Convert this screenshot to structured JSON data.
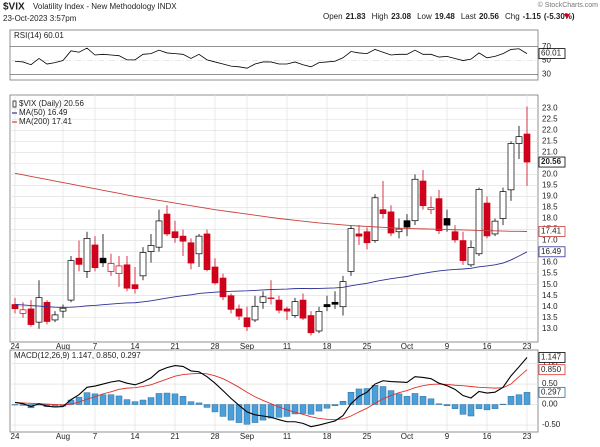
{
  "header": {
    "symbol": "$VIX",
    "name": "Volatility Index - New Methodology INDX",
    "datetime": "23-Oct-2023 3:57pm",
    "copyright": "© StockCharts.com",
    "quote": [
      {
        "label": "Open",
        "value": 21.83
      },
      {
        "label": "High",
        "value": 23.08
      },
      {
        "label": "Low",
        "value": 19.48
      },
      {
        "label": "Last",
        "value": 20.56
      },
      {
        "label": "Chg",
        "value": -1.15
      }
    ],
    "change_pct": {
      "value": -5.3,
      "label": "(-5.30%)"
    }
  },
  "chart_data": [
    {
      "type": "line",
      "title": "RSI(14) 60.01",
      "ylim": [
        22,
        94
      ],
      "yticks": [
        30,
        50,
        70
      ],
      "series": [
        {
          "name": "RSI(14)",
          "color": "#000000",
          "values": [
            49,
            48,
            44,
            53,
            45,
            47,
            50,
            64,
            62,
            68,
            58,
            59,
            58,
            57,
            51,
            51,
            59,
            60,
            65,
            61,
            60,
            59,
            53,
            59,
            51,
            48,
            45,
            42,
            41,
            39,
            45,
            48,
            48,
            45,
            45,
            48,
            44,
            41,
            47,
            48,
            49,
            54,
            63,
            61,
            60,
            66,
            62,
            58,
            59,
            59,
            65,
            59,
            59,
            55,
            56,
            53,
            50,
            52,
            61,
            54,
            56,
            60,
            66,
            67,
            60.01
          ]
        }
      ]
    },
    {
      "type": "candlestick",
      "title": "$VIX (Daily) 20.56",
      "ylim": [
        12.4,
        23.6
      ],
      "yticks": [
        {
          "value": 13,
          "label": "13.0"
        },
        {
          "value": 13.5,
          "label": "13.5"
        },
        {
          "value": 14,
          "label": "14.0"
        },
        {
          "value": 14.5,
          "label": "14.5"
        },
        {
          "value": 15,
          "label": "15.0"
        },
        {
          "value": 15.5,
          "label": "15.5"
        },
        {
          "value": 16,
          "label": "16.0"
        },
        {
          "value": 16.5,
          "label": "16.5"
        },
        {
          "value": 17,
          "label": "17.0"
        },
        {
          "value": 17.5,
          "label": "17.5"
        },
        {
          "value": 18,
          "label": "18.0"
        },
        {
          "value": 18.5,
          "label": "18.5"
        },
        {
          "value": 19,
          "label": "19.0"
        },
        {
          "value": 19.5,
          "label": "19.5"
        },
        {
          "value": 20,
          "label": "20.0"
        },
        {
          "value": 20.5,
          "label": "20.5"
        },
        {
          "value": 21,
          "label": "21.0"
        },
        {
          "value": 21.5,
          "label": "21.5"
        },
        {
          "value": 22,
          "label": "22.0"
        },
        {
          "value": 22.5,
          "label": "22.5"
        },
        {
          "value": 23,
          "label": "23.0"
        }
      ],
      "categories": [
        "24",
        null,
        null,
        null,
        null,
        null,
        "Aug",
        null,
        null,
        null,
        "7",
        null,
        null,
        null,
        null,
        "14",
        null,
        null,
        null,
        null,
        "21",
        null,
        null,
        null,
        null,
        "28",
        null,
        null,
        null,
        "Sep",
        null,
        null,
        null,
        null,
        "11",
        null,
        null,
        null,
        null,
        "18",
        null,
        null,
        null,
        null,
        "25",
        null,
        null,
        null,
        null,
        "Oct",
        null,
        null,
        null,
        null,
        "9",
        null,
        null,
        null,
        null,
        "16",
        null,
        null,
        null,
        null,
        "23"
      ],
      "up_color": "#000000",
      "down_color": "#d0021b",
      "open": [
        14.1,
        13.7,
        13.9,
        13.3,
        14.2,
        13.4,
        13.8,
        14.3,
        16.2,
        15.6,
        16.8,
        16.2,
        15.6,
        15.5,
        15.9,
        15.0,
        15.4,
        16.5,
        16.7,
        18.2,
        17.4,
        17.2,
        16.9,
        16.4,
        17.3,
        15.8,
        15.3,
        14.5,
        13.9,
        13.5,
        13.4,
        14.2,
        14.4,
        14.3,
        13.9,
        13.6,
        14.3,
        13.6,
        12.9,
        14.1,
        14.2,
        14.0,
        15.6,
        17.3,
        17.4,
        17.0,
        18.4,
        18.3,
        17.4,
        17.9,
        17.9,
        19.7,
        18.4,
        18.9,
        18.0,
        17.4,
        17.0,
        15.9,
        16.4,
        18.7,
        17.3,
        18.0,
        19.3,
        21.4,
        21.83
      ],
      "high": [
        14.4,
        14.2,
        14.3,
        15.2,
        14.3,
        13.8,
        14.1,
        16.3,
        17.0,
        17.4,
        17.2,
        17.3,
        16.4,
        16.3,
        16.3,
        15.8,
        16.7,
        17.3,
        18.4,
        18.6,
        17.9,
        17.5,
        17.1,
        17.3,
        17.5,
        16.2,
        15.5,
        14.6,
        14.1,
        14.0,
        14.5,
        14.7,
        15.2,
        14.5,
        14.0,
        14.4,
        14.6,
        13.8,
        14.0,
        14.5,
        14.7,
        15.4,
        17.7,
        17.7,
        17.6,
        19.1,
        19.7,
        18.6,
        18.0,
        18.2,
        20.0,
        20.2,
        19.0,
        19.3,
        18.4,
        17.7,
        17.4,
        17.0,
        19.4,
        19.0,
        18.0,
        19.4,
        21.5,
        22.2,
        23.08
      ],
      "low": [
        13.7,
        13.5,
        13.1,
        13.0,
        13.2,
        13.3,
        13.5,
        14.2,
        15.6,
        15.3,
        15.6,
        15.8,
        15.4,
        14.9,
        14.7,
        14.6,
        15.2,
        16.0,
        16.5,
        17.2,
        16.9,
        16.3,
        15.7,
        15.8,
        15.6,
        15.0,
        14.3,
        13.7,
        13.4,
        12.9,
        13.3,
        13.9,
        14.1,
        13.7,
        13.4,
        13.5,
        13.4,
        12.7,
        12.8,
        13.8,
        13.9,
        13.6,
        15.4,
        16.8,
        16.6,
        16.9,
        18.0,
        17.2,
        17.1,
        17.2,
        17.7,
        18.4,
        18.2,
        17.3,
        17.4,
        16.9,
        15.9,
        15.8,
        16.3,
        17.1,
        17.2,
        17.7,
        18.8,
        20.7,
        19.48
      ],
      "close": [
        13.91,
        13.86,
        13.19,
        14.41,
        13.33,
        13.63,
        13.93,
        16.09,
        15.92,
        17.1,
        15.77,
        15.99,
        15.96,
        15.85,
        14.84,
        14.82,
        16.46,
        16.78,
        17.89,
        17.3,
        17.13,
        16.97,
        15.98,
        17.2,
        15.68,
        15.08,
        14.45,
        13.88,
        13.57,
        13.09,
        14.02,
        14.45,
        14.4,
        13.84,
        13.8,
        14.23,
        13.48,
        12.82,
        13.79,
        14.0,
        14.11,
        15.14,
        17.54,
        17.2,
        16.9,
        18.94,
        18.22,
        17.34,
        17.52,
        17.61,
        19.78,
        18.58,
        18.49,
        17.45,
        17.7,
        17.03,
        16.09,
        16.69,
        19.32,
        17.21,
        17.88,
        19.22,
        21.4,
        21.71,
        20.56
      ],
      "series": [
        {
          "name": "MA(50) 16.49",
          "color": "#2e3192",
          "values": [
            14.1,
            14.08,
            14.05,
            14.03,
            14.0,
            13.98,
            13.97,
            13.98,
            14.0,
            14.04,
            14.06,
            14.09,
            14.12,
            14.15,
            14.17,
            14.18,
            14.22,
            14.27,
            14.33,
            14.39,
            14.45,
            14.5,
            14.54,
            14.6,
            14.63,
            14.66,
            14.68,
            14.7,
            14.71,
            14.72,
            14.74,
            14.76,
            14.78,
            14.79,
            14.8,
            14.82,
            14.83,
            14.82,
            14.83,
            14.84,
            14.85,
            14.88,
            14.95,
            15.01,
            15.06,
            15.14,
            15.21,
            15.27,
            15.32,
            15.37,
            15.45,
            15.51,
            15.57,
            15.62,
            15.66,
            15.69,
            15.71,
            15.74,
            15.81,
            15.85,
            15.9,
            15.98,
            16.12,
            16.3,
            16.49
          ]
        },
        {
          "name": "MA(200) 17.41",
          "color": "#c8403a",
          "values": [
            20.05,
            19.98,
            19.91,
            19.84,
            19.77,
            19.7,
            19.63,
            19.56,
            19.49,
            19.42,
            19.35,
            19.28,
            19.21,
            19.14,
            19.07,
            19.0,
            18.94,
            18.88,
            18.82,
            18.76,
            18.7,
            18.64,
            18.58,
            18.52,
            18.46,
            18.4,
            18.35,
            18.3,
            18.25,
            18.2,
            18.15,
            18.1,
            18.05,
            18.0,
            17.96,
            17.92,
            17.88,
            17.84,
            17.8,
            17.77,
            17.74,
            17.71,
            17.68,
            17.66,
            17.64,
            17.62,
            17.6,
            17.58,
            17.56,
            17.55,
            17.54,
            17.53,
            17.52,
            17.51,
            17.5,
            17.49,
            17.48,
            17.47,
            17.46,
            17.45,
            17.44,
            17.43,
            17.42,
            17.42,
            17.41
          ]
        }
      ]
    },
    {
      "type": "macd",
      "title": "MACD(12,26,9) 1.147, 0.850, 0.297",
      "ylim": [
        -0.67,
        1.33
      ],
      "yticks": [
        {
          "value": -0.5,
          "label": "-0.50"
        },
        {
          "value": 0,
          "label": "0.00"
        },
        {
          "value": 0.5,
          "label": "0.50"
        },
        {
          "value": 1,
          "label": "1.00"
        }
      ],
      "series": [
        {
          "name": "MACD",
          "color": "#000000",
          "values": [
            0.05,
            0.02,
            -0.05,
            0.02,
            -0.04,
            -0.06,
            -0.05,
            0.12,
            0.24,
            0.42,
            0.45,
            0.5,
            0.55,
            0.58,
            0.52,
            0.48,
            0.55,
            0.65,
            0.82,
            0.9,
            0.95,
            0.93,
            0.82,
            0.8,
            0.68,
            0.52,
            0.34,
            0.15,
            -0.02,
            -0.18,
            -0.25,
            -0.28,
            -0.31,
            -0.37,
            -0.42,
            -0.42,
            -0.46,
            -0.54,
            -0.5,
            -0.45,
            -0.4,
            -0.27,
            0.02,
            0.2,
            0.3,
            0.5,
            0.58,
            0.56,
            0.55,
            0.54,
            0.68,
            0.66,
            0.63,
            0.52,
            0.46,
            0.37,
            0.22,
            0.16,
            0.32,
            0.28,
            0.3,
            0.42,
            0.7,
            0.92,
            1.147
          ]
        },
        {
          "name": "Signal",
          "color": "#e0312b",
          "values": [
            0.05,
            0.04,
            0.03,
            0.02,
            0.01,
            0.0,
            -0.01,
            0.01,
            0.06,
            0.13,
            0.19,
            0.26,
            0.31,
            0.37,
            0.4,
            0.41,
            0.44,
            0.48,
            0.55,
            0.62,
            0.69,
            0.73,
            0.75,
            0.76,
            0.75,
            0.7,
            0.63,
            0.53,
            0.42,
            0.3,
            0.19,
            0.1,
            0.02,
            -0.06,
            -0.13,
            -0.19,
            -0.24,
            -0.3,
            -0.34,
            -0.36,
            -0.37,
            -0.35,
            -0.28,
            -0.18,
            -0.09,
            0.03,
            0.14,
            0.22,
            0.29,
            0.34,
            0.41,
            0.46,
            0.49,
            0.5,
            0.49,
            0.47,
            0.46,
            0.44,
            0.42,
            0.41,
            0.4,
            0.41,
            0.5,
            0.68,
            0.85
          ],
          "value_labels": [
            null,
            null,
            null,
            null,
            null,
            null,
            null,
            null,
            null,
            null,
            null,
            null,
            null,
            null,
            null,
            null,
            null,
            null,
            null,
            null,
            null,
            null,
            null,
            null,
            null,
            null,
            null,
            null,
            null,
            null,
            null,
            null,
            null,
            null,
            null,
            null,
            null,
            null,
            null,
            null,
            null,
            null,
            null,
            null,
            null,
            null,
            null,
            null,
            null,
            null,
            null,
            null,
            null,
            null,
            null,
            null,
            null,
            null,
            null,
            null,
            null,
            null,
            null,
            null,
            "0.850"
          ]
        },
        {
          "name": "Histogram",
          "color": "#4a9fd8",
          "values": [
            0.0,
            -0.02,
            -0.08,
            0.0,
            -0.05,
            -0.06,
            -0.04,
            0.11,
            0.18,
            0.29,
            0.26,
            0.24,
            0.24,
            0.21,
            0.12,
            0.07,
            0.11,
            0.17,
            0.27,
            0.28,
            0.26,
            0.2,
            0.07,
            0.04,
            -0.07,
            -0.18,
            -0.29,
            -0.38,
            -0.44,
            -0.48,
            -0.44,
            -0.38,
            -0.33,
            -0.31,
            -0.29,
            -0.23,
            -0.22,
            -0.24,
            -0.16,
            -0.09,
            -0.03,
            0.08,
            0.3,
            0.38,
            0.39,
            0.47,
            0.44,
            0.34,
            0.26,
            0.2,
            0.27,
            0.2,
            0.14,
            0.02,
            -0.03,
            -0.1,
            -0.24,
            -0.28,
            -0.1,
            -0.13,
            -0.1,
            0.01,
            0.2,
            0.24,
            0.297
          ]
        }
      ]
    }
  ]
}
